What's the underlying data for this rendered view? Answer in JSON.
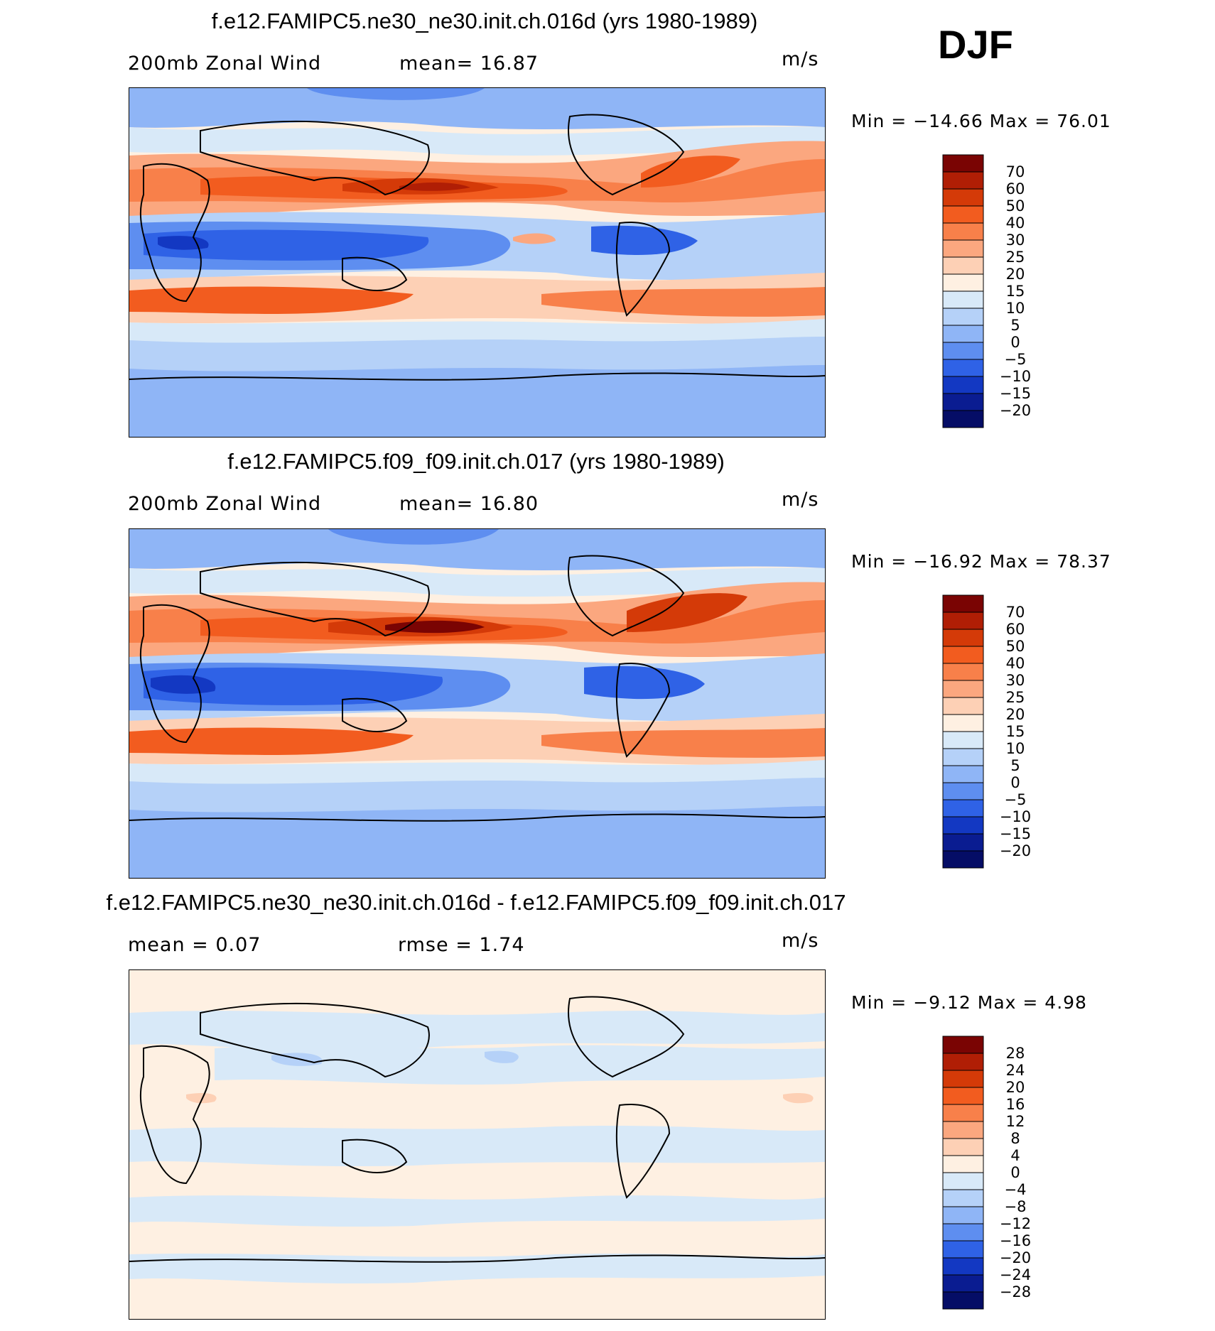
{
  "season": "DJF",
  "panels": [
    {
      "title": "f.e12.FAMIPC5.ne30_ne30.init.ch.016d (yrs 1980-1989)",
      "left_text": "200mb Zonal Wind",
      "center_text": "mean=   16.87",
      "units": "m/s",
      "minmax": "Min = −14.66 Max =   76.01"
    },
    {
      "title": "f.e12.FAMIPC5.f09_f09.init.ch.017 (yrs 1980-1989)",
      "left_text": "200mb Zonal Wind",
      "center_text": "mean=   16.80",
      "units": "m/s",
      "minmax": "Min = −16.92 Max =   78.37"
    },
    {
      "title": "f.e12.FAMIPC5.ne30_ne30.init.ch.016d - f.e12.FAMIPC5.f09_f09.init.ch.017",
      "left_text": "mean =    0.07",
      "center_text": "rmse =    1.74",
      "units": "m/s",
      "minmax": "Min =   −9.12 Max =    4.98"
    }
  ],
  "chart_data": [
    {
      "type": "heatmap",
      "title": "f.e12.FAMIPC5.ne30_ne30.init.ch.016d (yrs 1980-1989)",
      "variable": "200mb Zonal Wind",
      "units": "m/s",
      "mean": 16.87,
      "min": -14.66,
      "max": 76.01,
      "colorbar_labels": [
        "70",
        "60",
        "50",
        "40",
        "30",
        "25",
        "20",
        "15",
        "10",
        "5",
        "0",
        "−5",
        "−10",
        "−15",
        "−20"
      ],
      "colors": [
        "#7a0403",
        "#b01e05",
        "#d43a08",
        "#f25c1f",
        "#f8804a",
        "#fba77f",
        "#fdd0b5",
        "#fef0e2",
        "#d8e9f8",
        "#b5d1f8",
        "#8fb5f6",
        "#5e8ef0",
        "#2f62e6",
        "#1338c2",
        "#0a1c91",
        "#050d66"
      ]
    },
    {
      "type": "heatmap",
      "title": "f.e12.FAMIPC5.f09_f09.init.ch.017 (yrs 1980-1989)",
      "variable": "200mb Zonal Wind",
      "units": "m/s",
      "mean": 16.8,
      "min": -16.92,
      "max": 78.37,
      "colorbar_labels": [
        "70",
        "60",
        "50",
        "40",
        "30",
        "25",
        "20",
        "15",
        "10",
        "5",
        "0",
        "−5",
        "−10",
        "−15",
        "−20"
      ],
      "colors": [
        "#7a0403",
        "#b01e05",
        "#d43a08",
        "#f25c1f",
        "#f8804a",
        "#fba77f",
        "#fdd0b5",
        "#fef0e2",
        "#d8e9f8",
        "#b5d1f8",
        "#8fb5f6",
        "#5e8ef0",
        "#2f62e6",
        "#1338c2",
        "#0a1c91",
        "#050d66"
      ]
    },
    {
      "type": "heatmap",
      "title": "f.e12.FAMIPC5.ne30_ne30.init.ch.016d - f.e12.FAMIPC5.f09_f09.init.ch.017",
      "units": "m/s",
      "mean": 0.07,
      "rmse": 1.74,
      "min": -9.12,
      "max": 4.98,
      "colorbar_labels": [
        "28",
        "24",
        "20",
        "16",
        "12",
        "8",
        "4",
        "0",
        "−4",
        "−8",
        "−12",
        "−16",
        "−20",
        "−24",
        "−28"
      ],
      "colors": [
        "#7a0403",
        "#b01e05",
        "#d43a08",
        "#f25c1f",
        "#f8804a",
        "#fba77f",
        "#fdd0b5",
        "#fef0e2",
        "#d8e9f8",
        "#b5d1f8",
        "#8fb5f6",
        "#5e8ef0",
        "#2f62e6",
        "#1338c2",
        "#0a1c91",
        "#050d66"
      ]
    }
  ]
}
